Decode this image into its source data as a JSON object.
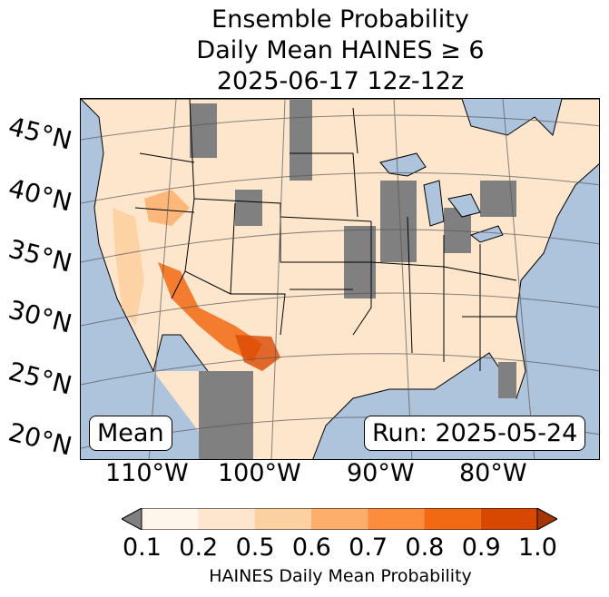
{
  "title": {
    "line1": "Ensemble Probability",
    "line2": "Daily Mean HAINES ≥ 6",
    "line3": "2025-06-17 12z-12z"
  },
  "map": {
    "lat_labels": [
      "45°N",
      "40°N",
      "35°N",
      "30°N",
      "25°N",
      "20°N"
    ],
    "lon_labels": [
      "110°W",
      "100°W",
      "90°W",
      "80°W"
    ],
    "ocean_color": "#aec3dc",
    "land_color": "#fde6cc",
    "missing_color": "#808080"
  },
  "box_left": "Mean",
  "box_right": "Run: 2025-05-24",
  "colorbar": {
    "ticks": [
      "0.1",
      "0.2",
      "0.5",
      "0.6",
      "0.7",
      "0.8",
      "0.9",
      "1.0"
    ],
    "colors": [
      "#fff5eb",
      "#fee6ce",
      "#fdd0a2",
      "#fdae6b",
      "#fd8d3c",
      "#f16913",
      "#d94801",
      "#a63603"
    ],
    "under_color": "#808080",
    "label": "HAINES Daily Mean Probability"
  }
}
